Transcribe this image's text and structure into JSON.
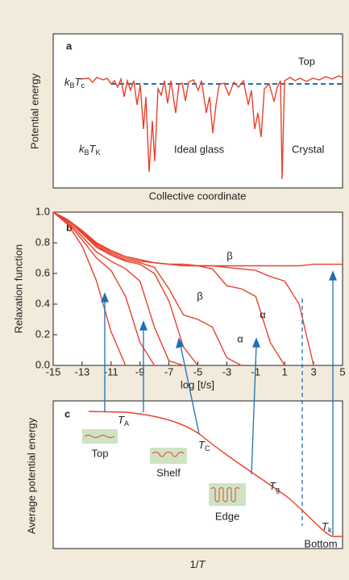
{
  "panel_a": {
    "label": "a",
    "top": "Top",
    "kbtc": [
      "k",
      "B",
      "T",
      "c"
    ],
    "y_label": "Potential energy",
    "kbtk": [
      "k",
      "B",
      "T",
      "K"
    ],
    "ideal_glass": "Ideal glass",
    "crystal": "Crystal",
    "x_label": "Collective coordinate"
  },
  "chart_data": {
    "type": "line",
    "panel_label": "b",
    "y_label": "Relaxation function",
    "x_label": "log [t/s]",
    "xlim": [
      -15,
      5
    ],
    "xticks": [
      -15,
      -13,
      -11,
      -9,
      -7,
      -5,
      -3,
      -1,
      1,
      3,
      5
    ],
    "ylim": [
      0,
      1
    ],
    "yticks": [
      {
        "value": 0,
        "label": "0.0"
      },
      0.2,
      0.4,
      0.6,
      0.8,
      {
        "value": 1,
        "label": "1.0"
      }
    ],
    "x": [
      -15,
      -14,
      -13,
      -12,
      -11,
      -10,
      -9,
      -8,
      -7,
      -6,
      -5,
      -4,
      -3,
      -2,
      -1,
      0,
      1,
      2,
      3,
      4,
      5
    ],
    "series": [
      {
        "color": "#e8412c",
        "values": [
          1,
          0.92,
          0.78,
          0.55,
          0.22,
          0.0,
          null,
          null,
          null,
          null,
          null,
          null,
          null,
          null,
          null,
          null,
          null,
          null,
          null,
          null,
          null
        ]
      },
      {
        "color": "#e8412c",
        "values": [
          1,
          0.93,
          0.82,
          0.7,
          0.62,
          0.45,
          0.15,
          0.0,
          null,
          null,
          null,
          null,
          null,
          null,
          null,
          null,
          null,
          null,
          null,
          null,
          null
        ]
      },
      {
        "color": "#e8412c",
        "values": [
          1,
          0.94,
          0.84,
          0.74,
          0.68,
          0.63,
          0.55,
          0.25,
          0.03,
          0.0,
          null,
          null,
          null,
          null,
          null,
          null,
          null,
          null,
          null,
          null,
          null
        ]
      },
      {
        "color": "#e8412c",
        "values": [
          1,
          0.95,
          0.86,
          0.77,
          0.72,
          0.68,
          0.66,
          0.6,
          0.42,
          0.12,
          0.0,
          null,
          null,
          null,
          null,
          null,
          null,
          null,
          null,
          null,
          null
        ]
      },
      {
        "color": "#e8412c",
        "values": [
          1,
          0.95,
          0.87,
          0.78,
          0.72,
          0.69,
          0.67,
          0.64,
          0.5,
          0.33,
          0.3,
          0.25,
          0.05,
          0.0,
          null,
          null,
          null,
          null,
          null,
          null,
          null
        ]
      },
      {
        "color": "#e8412c",
        "values": [
          1,
          0.95,
          0.87,
          0.79,
          0.73,
          0.7,
          0.68,
          0.67,
          0.66,
          0.66,
          0.65,
          0.63,
          0.52,
          0.5,
          0.45,
          0.15,
          0.0,
          null,
          null,
          null,
          null
        ]
      },
      {
        "color": "#e8412c",
        "values": [
          1,
          0.95,
          0.88,
          0.8,
          0.74,
          0.71,
          0.69,
          0.67,
          0.66,
          0.66,
          0.65,
          0.65,
          0.64,
          0.63,
          0.62,
          0.58,
          0.55,
          0.4,
          0.0,
          null,
          null
        ]
      },
      {
        "color": "#e8412c",
        "values": [
          1,
          0.95,
          0.88,
          0.8,
          0.75,
          0.71,
          0.69,
          0.67,
          0.66,
          0.65,
          0.65,
          0.65,
          0.65,
          0.65,
          0.65,
          0.65,
          0.65,
          0.65,
          0.66,
          0.66,
          0.66
        ]
      }
    ],
    "annotations": [
      "β",
      "β",
      "α",
      "α"
    ]
  },
  "panel_c": {
    "label": "c",
    "ta": [
      "T",
      "A"
    ],
    "top": "Top",
    "tc": [
      "T",
      "C"
    ],
    "shelf": "Shelf",
    "tg": [
      "T",
      "g"
    ],
    "edge": "Edge",
    "tk": [
      "T",
      "k"
    ],
    "bottom": "Bottom",
    "y_label": "Average potential energy",
    "x_label": [
      "1/",
      "T"
    ]
  }
}
